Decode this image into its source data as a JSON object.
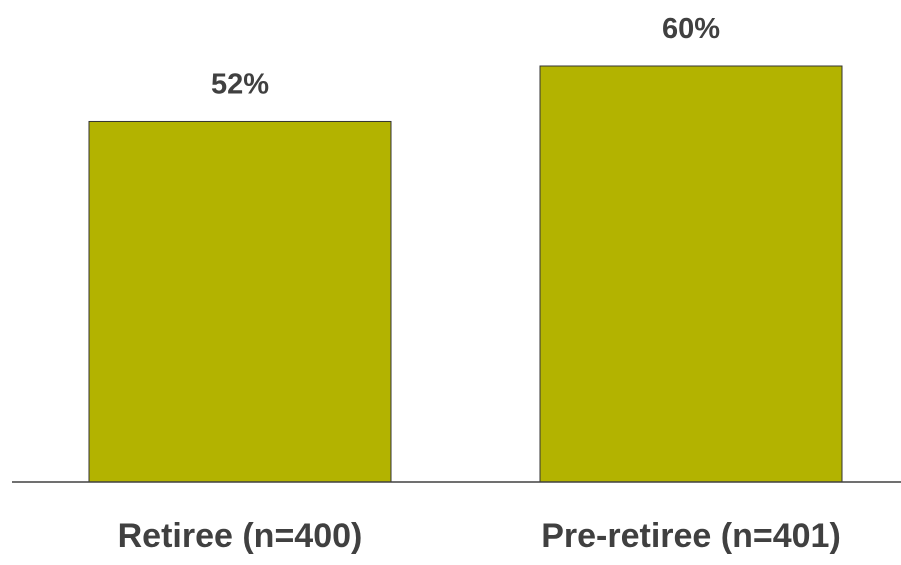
{
  "chart_data": {
    "type": "bar",
    "title": "",
    "xlabel": "",
    "ylabel": "",
    "categories": [
      "Retiree (n=400)",
      "Pre-retiree (n=401)"
    ],
    "values": [
      52,
      60
    ],
    "data_labels": [
      "52%",
      "60%"
    ],
    "ylim": [
      0,
      60
    ],
    "grid": false,
    "legend": "none",
    "bar_color": "#b3b300",
    "axis_color": "#404040",
    "text_color": "#404040"
  }
}
